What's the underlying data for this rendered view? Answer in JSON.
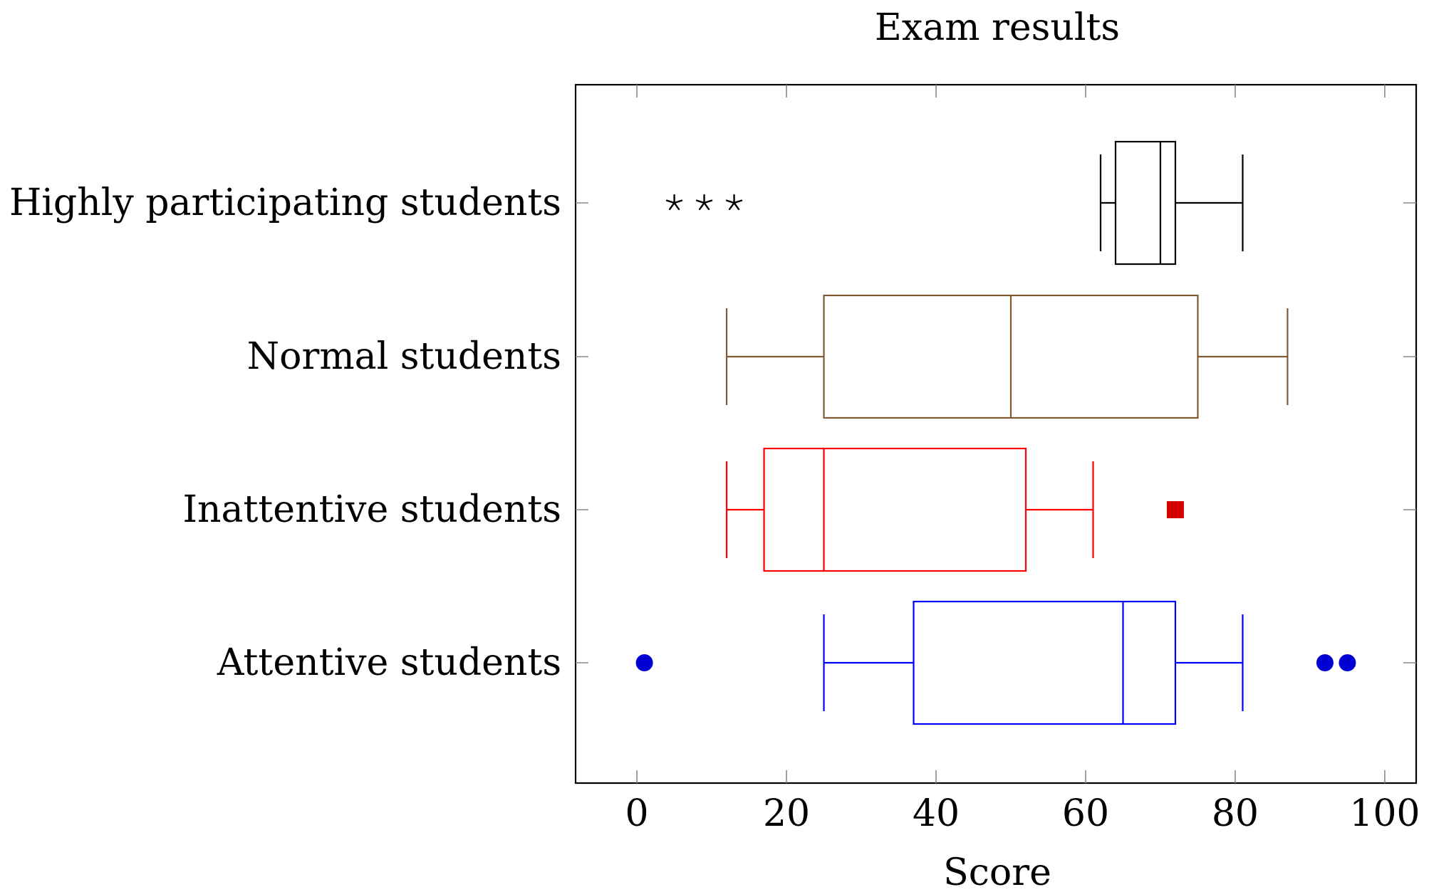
{
  "chart_data": {
    "type": "boxplot",
    "orientation": "horizontal",
    "title": "Exam results",
    "xlabel": "Score",
    "ylabel": "",
    "xlim": [
      -8.2,
      104.2
    ],
    "xticks": [
      0,
      20,
      40,
      60,
      80,
      100
    ],
    "grid": false,
    "categories": [
      "Highly participating students",
      "Normal students",
      "Inattentive students",
      "Attentive students"
    ],
    "series": [
      {
        "category": "Highly participating students",
        "color": "#000000",
        "whisker_low": 62,
        "q1": 64,
        "median": 70,
        "q3": 72,
        "whisker_high": 81,
        "outliers": [
          5,
          9,
          13
        ],
        "outlier_marker": "star"
      },
      {
        "category": "Normal students",
        "color": "#7f5a32",
        "whisker_low": 12,
        "q1": 25,
        "median": 50,
        "q3": 75,
        "whisker_high": 87,
        "outliers": [],
        "outlier_marker": "none"
      },
      {
        "category": "Inattentive students",
        "color": "#ff0000",
        "whisker_low": 12,
        "q1": 17,
        "median": 25,
        "q3": 52,
        "whisker_high": 61,
        "outliers": [
          72
        ],
        "outlier_marker": "square",
        "outlier_color": "#d40000"
      },
      {
        "category": "Attentive students",
        "color": "#0000ff",
        "whisker_low": 25,
        "q1": 37,
        "median": 65,
        "q3": 72,
        "whisker_high": 81,
        "outliers": [
          1,
          92,
          95
        ],
        "outlier_marker": "circle",
        "outlier_color": "#0000d4"
      }
    ]
  }
}
